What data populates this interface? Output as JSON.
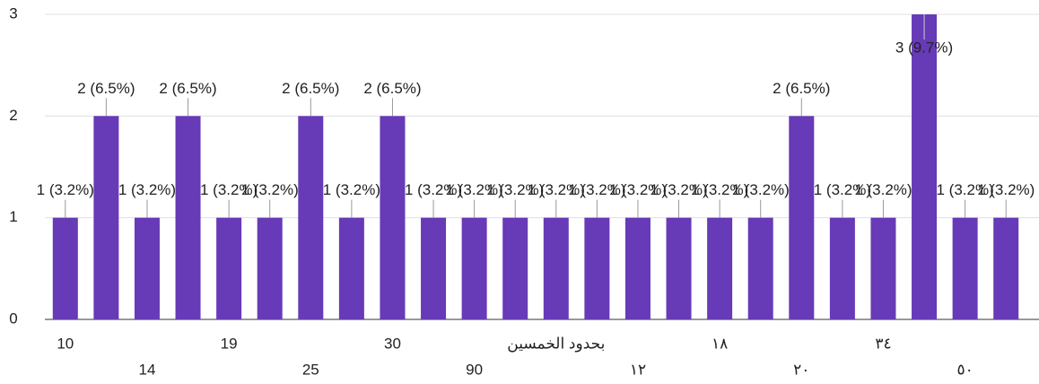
{
  "chart_data": {
    "type": "bar",
    "categories": [
      "10",
      null,
      "14",
      null,
      "19",
      null,
      "25",
      null,
      "30",
      null,
      "90",
      null,
      "بحدود الخمسين",
      null,
      "١٢",
      null,
      "١٨",
      null,
      "٢٠",
      null,
      "٣٤",
      null,
      "٥٠",
      null
    ],
    "values": [
      1,
      2,
      1,
      2,
      1,
      1,
      2,
      1,
      2,
      1,
      1,
      1,
      1,
      1,
      1,
      1,
      1,
      1,
      2,
      1,
      1,
      3,
      1,
      1
    ],
    "value_labels": [
      "1 (3.2%)",
      "2 (6.5%)",
      "1 (3.2%)",
      "2 (6.5%)",
      "1 (3.2%)",
      "1 (3.2%)",
      "2 (6.5%)",
      "1 (3.2%)",
      "2 (6.5%)",
      "1 (3.2%)",
      "1 (3.2%)",
      "1 (3.2%)",
      "1 (3.2%)",
      "1 (3.2%)",
      "1 (3.2%)",
      "1 (3.2%)",
      "1 (3.2%)",
      "1 (3.2%)",
      "2 (6.5%)",
      "1 (3.2%)",
      "1 (3.2%)",
      "3 (9.7%)",
      "1 (3.2%)",
      "1 (3.2%)"
    ],
    "color": "#673ab7",
    "ylim": [
      0,
      3
    ],
    "yticks": [
      0,
      1,
      2,
      3
    ],
    "grid": true
  }
}
